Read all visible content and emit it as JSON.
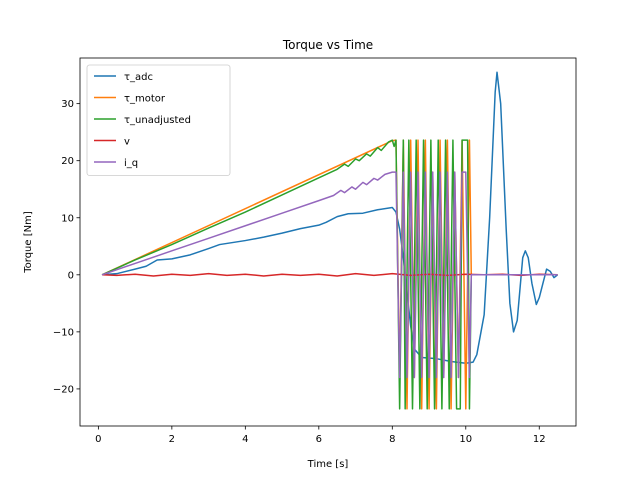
{
  "chart_data": {
    "type": "line",
    "title": "Torque vs Time",
    "xlabel": "Time [s]",
    "ylabel": "Torque [Nm]",
    "xlim": [
      -0.5,
      13.0
    ],
    "ylim": [
      -26.5,
      38.0
    ],
    "xticks": [
      0,
      2,
      4,
      6,
      8,
      10,
      12
    ],
    "yticks": [
      -20,
      -10,
      0,
      10,
      20,
      30
    ],
    "grid": false,
    "legend_position": "top-left",
    "series": [
      {
        "name": "τ_adc",
        "color": "#1f77b4",
        "points": [
          [
            0.1,
            0
          ],
          [
            0.5,
            0.2
          ],
          [
            1.0,
            1.0
          ],
          [
            1.3,
            1.5
          ],
          [
            1.6,
            2.6
          ],
          [
            2.0,
            2.8
          ],
          [
            2.5,
            3.5
          ],
          [
            3.0,
            4.6
          ],
          [
            3.3,
            5.3
          ],
          [
            4.0,
            6.0
          ],
          [
            4.5,
            6.6
          ],
          [
            5.0,
            7.3
          ],
          [
            5.5,
            8.1
          ],
          [
            6.0,
            8.7
          ],
          [
            6.2,
            9.2
          ],
          [
            6.5,
            10.2
          ],
          [
            6.8,
            10.7
          ],
          [
            7.2,
            10.8
          ],
          [
            7.6,
            11.4
          ],
          [
            8.0,
            11.8
          ],
          [
            8.1,
            11.0
          ],
          [
            8.2,
            8.0
          ],
          [
            8.3,
            3.0
          ],
          [
            8.4,
            -3.0
          ],
          [
            8.5,
            -9.0
          ],
          [
            8.6,
            -13.0
          ],
          [
            8.8,
            -14.5
          ],
          [
            9.2,
            -14.7
          ],
          [
            9.6,
            -15.2
          ],
          [
            10.0,
            -15.5
          ],
          [
            10.2,
            -15.3
          ],
          [
            10.3,
            -14.0
          ],
          [
            10.5,
            -7.0
          ],
          [
            10.65,
            10.0
          ],
          [
            10.8,
            32.0
          ],
          [
            10.85,
            35.5
          ],
          [
            10.95,
            30.0
          ],
          [
            11.1,
            8.0
          ],
          [
            11.2,
            -5.0
          ],
          [
            11.3,
            -10.0
          ],
          [
            11.4,
            -8.0
          ],
          [
            11.55,
            3.0
          ],
          [
            11.62,
            4.2
          ],
          [
            11.7,
            3.0
          ],
          [
            11.8,
            -1.5
          ],
          [
            11.92,
            -5.2
          ],
          [
            12.0,
            -4.0
          ],
          [
            12.1,
            -1.5
          ],
          [
            12.2,
            1.0
          ],
          [
            12.3,
            0.6
          ],
          [
            12.4,
            -0.5
          ],
          [
            12.5,
            0
          ]
        ]
      },
      {
        "name": "τ_motor",
        "color": "#ff7f0e",
        "points": [
          [
            0.1,
            0
          ],
          [
            8.0,
            23.5
          ],
          [
            8.1,
            23.6
          ],
          [
            8.2,
            -18.0
          ],
          [
            8.3,
            23.6
          ],
          [
            8.4,
            -23.5
          ],
          [
            8.5,
            23.6
          ],
          [
            8.6,
            -18.0
          ],
          [
            8.7,
            23.6
          ],
          [
            8.8,
            -23.5
          ],
          [
            8.9,
            23.6
          ],
          [
            9.0,
            -23.5
          ],
          [
            9.1,
            18.0
          ],
          [
            9.2,
            -23.5
          ],
          [
            9.3,
            23.6
          ],
          [
            9.4,
            -18.0
          ],
          [
            9.5,
            23.6
          ],
          [
            9.6,
            -23.5
          ],
          [
            9.7,
            18.0
          ],
          [
            9.8,
            -18.0
          ],
          [
            9.9,
            23.6
          ],
          [
            10.0,
            -23.5
          ],
          [
            10.1,
            23.6
          ],
          [
            10.15,
            0
          ],
          [
            12.5,
            0
          ]
        ]
      },
      {
        "name": "τ_unadjusted",
        "color": "#2ca02c",
        "points": [
          [
            0.1,
            0
          ],
          [
            1.0,
            2.6
          ],
          [
            2.0,
            5.3
          ],
          [
            3.0,
            8.2
          ],
          [
            4.0,
            11.0
          ],
          [
            5.0,
            14.0
          ],
          [
            6.0,
            17.0
          ],
          [
            6.5,
            18.5
          ],
          [
            6.7,
            19.4
          ],
          [
            6.8,
            19.0
          ],
          [
            7.0,
            20.3
          ],
          [
            7.1,
            20.0
          ],
          [
            7.3,
            21.2
          ],
          [
            7.4,
            20.8
          ],
          [
            7.6,
            22.3
          ],
          [
            7.7,
            21.8
          ],
          [
            7.9,
            23.3
          ],
          [
            8.0,
            23.6
          ],
          [
            8.05,
            22.5
          ],
          [
            8.1,
            23.6
          ],
          [
            8.2,
            -23.5
          ],
          [
            8.3,
            23.6
          ],
          [
            8.35,
            -23.5
          ],
          [
            8.45,
            23.6
          ],
          [
            8.55,
            -23.5
          ],
          [
            8.65,
            23.6
          ],
          [
            8.75,
            -23.5
          ],
          [
            8.85,
            23.6
          ],
          [
            8.95,
            -23.5
          ],
          [
            9.05,
            23.6
          ],
          [
            9.15,
            -23.5
          ],
          [
            9.25,
            23.6
          ],
          [
            9.35,
            -23.5
          ],
          [
            9.45,
            23.6
          ],
          [
            9.55,
            -23.5
          ],
          [
            9.65,
            23.6
          ],
          [
            9.75,
            -23.5
          ],
          [
            9.85,
            -23.5
          ],
          [
            9.9,
            23.6
          ],
          [
            10.05,
            23.6
          ],
          [
            10.1,
            -23.5
          ],
          [
            10.15,
            0
          ],
          [
            12.5,
            0
          ]
        ]
      },
      {
        "name": "v",
        "color": "#d62728",
        "points": [
          [
            0.1,
            0
          ],
          [
            0.5,
            -0.1
          ],
          [
            1.0,
            0.1
          ],
          [
            1.5,
            -0.2
          ],
          [
            2.0,
            0.1
          ],
          [
            2.5,
            -0.1
          ],
          [
            3.0,
            0.2
          ],
          [
            3.5,
            -0.1
          ],
          [
            4.0,
            0.1
          ],
          [
            4.5,
            -0.2
          ],
          [
            5.0,
            0.1
          ],
          [
            5.5,
            -0.1
          ],
          [
            6.0,
            0.1
          ],
          [
            6.5,
            -0.2
          ],
          [
            7.0,
            0.2
          ],
          [
            7.5,
            -0.1
          ],
          [
            8.0,
            0.2
          ],
          [
            8.5,
            -0.1
          ],
          [
            9.0,
            0.1
          ],
          [
            9.5,
            -0.1
          ],
          [
            10.0,
            0.1
          ],
          [
            10.5,
            0
          ],
          [
            11.0,
            0.1
          ],
          [
            11.5,
            -0.1
          ],
          [
            12.0,
            0.1
          ],
          [
            12.5,
            0
          ]
        ]
      },
      {
        "name": "i_q",
        "color": "#9467bd",
        "points": [
          [
            0.1,
            0
          ],
          [
            1.0,
            2.0
          ],
          [
            2.0,
            4.2
          ],
          [
            3.0,
            6.4
          ],
          [
            4.0,
            8.6
          ],
          [
            5.0,
            10.8
          ],
          [
            6.0,
            13.0
          ],
          [
            6.4,
            13.9
          ],
          [
            6.6,
            14.8
          ],
          [
            6.7,
            14.4
          ],
          [
            6.9,
            15.4
          ],
          [
            7.0,
            15.0
          ],
          [
            7.2,
            16.2
          ],
          [
            7.3,
            15.8
          ],
          [
            7.5,
            16.9
          ],
          [
            7.6,
            16.6
          ],
          [
            7.8,
            17.6
          ],
          [
            8.0,
            18.0
          ],
          [
            8.1,
            18.0
          ],
          [
            8.2,
            -18.0
          ],
          [
            8.3,
            18.0
          ],
          [
            8.4,
            -18.0
          ],
          [
            8.5,
            18.0
          ],
          [
            8.6,
            -18.0
          ],
          [
            8.7,
            18.0
          ],
          [
            8.8,
            -18.0
          ],
          [
            8.9,
            18.0
          ],
          [
            9.0,
            -18.0
          ],
          [
            9.1,
            18.0
          ],
          [
            9.2,
            -18.0
          ],
          [
            9.3,
            18.0
          ],
          [
            9.4,
            -18.0
          ],
          [
            9.5,
            18.0
          ],
          [
            9.6,
            -18.0
          ],
          [
            9.7,
            18.0
          ],
          [
            9.8,
            -18.0
          ],
          [
            9.9,
            18.0
          ],
          [
            10.0,
            18.0
          ],
          [
            10.1,
            -18.0
          ],
          [
            10.15,
            0
          ],
          [
            12.5,
            0
          ]
        ]
      }
    ]
  }
}
